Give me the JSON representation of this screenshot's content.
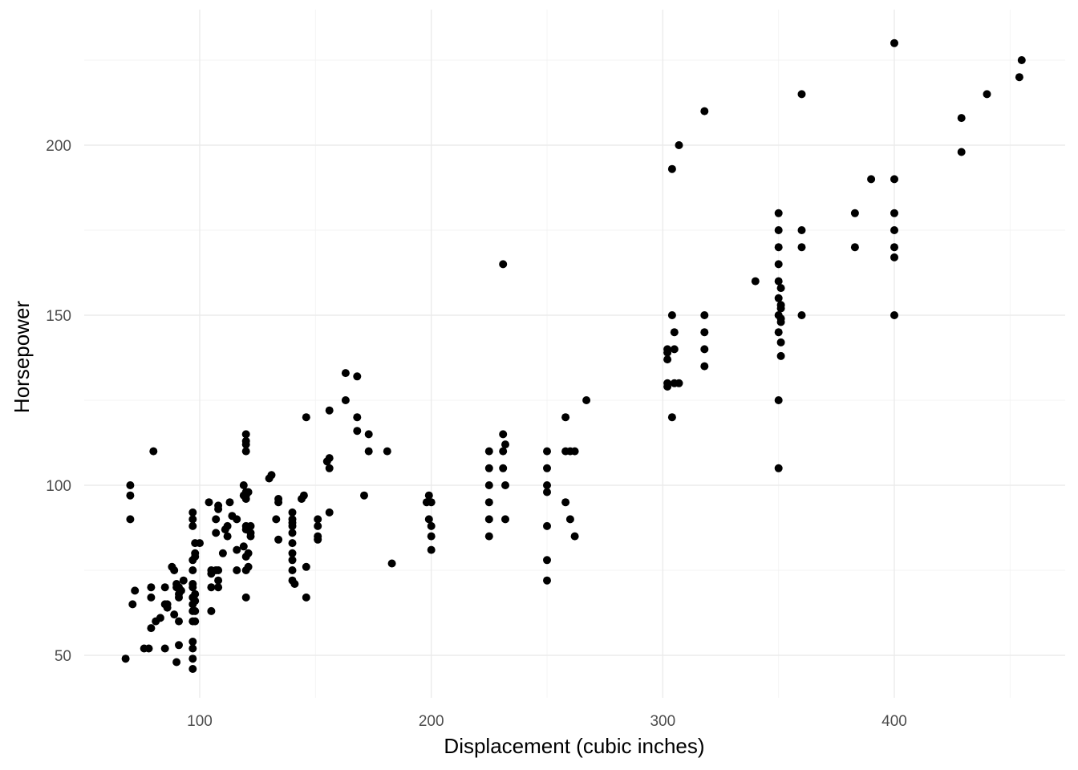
{
  "chart_data": {
    "type": "scatter",
    "title": "",
    "xlabel": "Displacement (cubic inches)",
    "ylabel": "Horsepower",
    "xlim": [
      50,
      475
    ],
    "ylim": [
      37,
      235
    ],
    "xticks": [
      100,
      200,
      300,
      400
    ],
    "yticks": [
      50,
      100,
      150,
      200
    ],
    "xtick_labels": [
      "100",
      "200",
      "300",
      "400"
    ],
    "ytick_labels": [
      "50",
      "100",
      "150",
      "200"
    ],
    "grid": true,
    "legend": "none",
    "point_color": "#000000",
    "points": [
      [
        68,
        49
      ],
      [
        70,
        90
      ],
      [
        70,
        97
      ],
      [
        70,
        100
      ],
      [
        71,
        65
      ],
      [
        72,
        69
      ],
      [
        76,
        52
      ],
      [
        78,
        52
      ],
      [
        79,
        67
      ],
      [
        79,
        70
      ],
      [
        79,
        58
      ],
      [
        80,
        110
      ],
      [
        81,
        60
      ],
      [
        83,
        61
      ],
      [
        85,
        65
      ],
      [
        85,
        52
      ],
      [
        85,
        70
      ],
      [
        86,
        65
      ],
      [
        86,
        64
      ],
      [
        88,
        76
      ],
      [
        89,
        75
      ],
      [
        89,
        62
      ],
      [
        90,
        48
      ],
      [
        90,
        71
      ],
      [
        90,
        70
      ],
      [
        91,
        67
      ],
      [
        91,
        60
      ],
      [
        91,
        53
      ],
      [
        91,
        70
      ],
      [
        91,
        68
      ],
      [
        92,
        69
      ],
      [
        93,
        72
      ],
      [
        97,
        92
      ],
      [
        97,
        90
      ],
      [
        97,
        88
      ],
      [
        97,
        78
      ],
      [
        97,
        75
      ],
      [
        97,
        71
      ],
      [
        97,
        70
      ],
      [
        97,
        67
      ],
      [
        97,
        65
      ],
      [
        97,
        63
      ],
      [
        97,
        60
      ],
      [
        97,
        54
      ],
      [
        97,
        52
      ],
      [
        97,
        49
      ],
      [
        97,
        46
      ],
      [
        98,
        83
      ],
      [
        98,
        80
      ],
      [
        98,
        79
      ],
      [
        98,
        68
      ],
      [
        98,
        66
      ],
      [
        98,
        63
      ],
      [
        98,
        60
      ],
      [
        100,
        83
      ],
      [
        104,
        95
      ],
      [
        105,
        63
      ],
      [
        105,
        75
      ],
      [
        105,
        70
      ],
      [
        105,
        74
      ],
      [
        107,
        86
      ],
      [
        107,
        90
      ],
      [
        107,
        75
      ],
      [
        108,
        93
      ],
      [
        108,
        94
      ],
      [
        108,
        72
      ],
      [
        108,
        75
      ],
      [
        108,
        70
      ],
      [
        110,
        80
      ],
      [
        111,
        87
      ],
      [
        112,
        88
      ],
      [
        112,
        85
      ],
      [
        113,
        95
      ],
      [
        114,
        91
      ],
      [
        116,
        90
      ],
      [
        116,
        75
      ],
      [
        116,
        81
      ],
      [
        119,
        100
      ],
      [
        119,
        97
      ],
      [
        119,
        82
      ],
      [
        120,
        88
      ],
      [
        120,
        97
      ],
      [
        120,
        75
      ],
      [
        120,
        115
      ],
      [
        120,
        113
      ],
      [
        120,
        110
      ],
      [
        120,
        112
      ],
      [
        120,
        98
      ],
      [
        120,
        96
      ],
      [
        120,
        79
      ],
      [
        120,
        87
      ],
      [
        120,
        67
      ],
      [
        121,
        80
      ],
      [
        121,
        76
      ],
      [
        121,
        98
      ],
      [
        122,
        85
      ],
      [
        122,
        86
      ],
      [
        122,
        88
      ],
      [
        130,
        102
      ],
      [
        131,
        103
      ],
      [
        133,
        90
      ],
      [
        134,
        96
      ],
      [
        134,
        95
      ],
      [
        134,
        84
      ],
      [
        140,
        92
      ],
      [
        140,
        90
      ],
      [
        140,
        89
      ],
      [
        140,
        88
      ],
      [
        140,
        86
      ],
      [
        140,
        83
      ],
      [
        140,
        80
      ],
      [
        140,
        78
      ],
      [
        140,
        75
      ],
      [
        140,
        72
      ],
      [
        141,
        71
      ],
      [
        144,
        96
      ],
      [
        145,
        97
      ],
      [
        146,
        76
      ],
      [
        146,
        67
      ],
      [
        146,
        120
      ],
      [
        151,
        90
      ],
      [
        151,
        88
      ],
      [
        151,
        85
      ],
      [
        151,
        84
      ],
      [
        155,
        107
      ],
      [
        156,
        108
      ],
      [
        156,
        105
      ],
      [
        156,
        92
      ],
      [
        156,
        122
      ],
      [
        163,
        125
      ],
      [
        163,
        133
      ],
      [
        168,
        132
      ],
      [
        168,
        120
      ],
      [
        168,
        116
      ],
      [
        171,
        97
      ],
      [
        173,
        110
      ],
      [
        173,
        115
      ],
      [
        181,
        110
      ],
      [
        183,
        77
      ],
      [
        198,
        95
      ],
      [
        199,
        97
      ],
      [
        199,
        90
      ],
      [
        200,
        95
      ],
      [
        200,
        88
      ],
      [
        200,
        85
      ],
      [
        200,
        81
      ],
      [
        225,
        110
      ],
      [
        225,
        105
      ],
      [
        225,
        100
      ],
      [
        225,
        95
      ],
      [
        225,
        90
      ],
      [
        225,
        85
      ],
      [
        231,
        165
      ],
      [
        231,
        115
      ],
      [
        231,
        110
      ],
      [
        231,
        105
      ],
      [
        232,
        112
      ],
      [
        232,
        100
      ],
      [
        232,
        90
      ],
      [
        250,
        110
      ],
      [
        250,
        105
      ],
      [
        250,
        100
      ],
      [
        250,
        98
      ],
      [
        250,
        88
      ],
      [
        250,
        78
      ],
      [
        250,
        72
      ],
      [
        258,
        120
      ],
      [
        258,
        110
      ],
      [
        258,
        95
      ],
      [
        260,
        110
      ],
      [
        260,
        90
      ],
      [
        262,
        110
      ],
      [
        262,
        85
      ],
      [
        267,
        125
      ],
      [
        302,
        140
      ],
      [
        302,
        139
      ],
      [
        302,
        137
      ],
      [
        302,
        130
      ],
      [
        302,
        129
      ],
      [
        304,
        193
      ],
      [
        304,
        150
      ],
      [
        304,
        120
      ],
      [
        305,
        145
      ],
      [
        305,
        140
      ],
      [
        305,
        130
      ],
      [
        307,
        200
      ],
      [
        307,
        130
      ],
      [
        318,
        210
      ],
      [
        318,
        150
      ],
      [
        318,
        145
      ],
      [
        318,
        140
      ],
      [
        318,
        135
      ],
      [
        340,
        160
      ],
      [
        350,
        180
      ],
      [
        350,
        175
      ],
      [
        350,
        170
      ],
      [
        350,
        165
      ],
      [
        350,
        160
      ],
      [
        350,
        155
      ],
      [
        350,
        150
      ],
      [
        350,
        145
      ],
      [
        350,
        125
      ],
      [
        350,
        105
      ],
      [
        351,
        158
      ],
      [
        351,
        153
      ],
      [
        351,
        152
      ],
      [
        351,
        149
      ],
      [
        351,
        148
      ],
      [
        351,
        142
      ],
      [
        351,
        138
      ],
      [
        360,
        215
      ],
      [
        360,
        175
      ],
      [
        360,
        170
      ],
      [
        360,
        150
      ],
      [
        383,
        180
      ],
      [
        383,
        170
      ],
      [
        390,
        190
      ],
      [
        400,
        230
      ],
      [
        400,
        190
      ],
      [
        400,
        180
      ],
      [
        400,
        175
      ],
      [
        400,
        170
      ],
      [
        400,
        167
      ],
      [
        400,
        150
      ],
      [
        429,
        208
      ],
      [
        429,
        198
      ],
      [
        440,
        215
      ],
      [
        454,
        220
      ],
      [
        455,
        225
      ]
    ]
  }
}
